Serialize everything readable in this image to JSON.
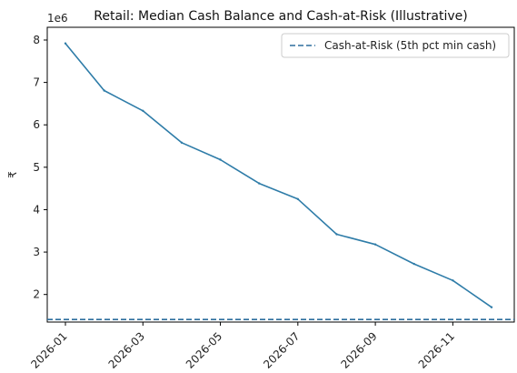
{
  "chart_data": {
    "type": "line",
    "title": "Retail: Median Cash Balance and Cash-at-Risk (Illustrative)",
    "xlabel": "",
    "ylabel": "₹",
    "y_offset_label": "1e6",
    "x": [
      "2026-01",
      "2026-02",
      "2026-03",
      "2026-04",
      "2026-05",
      "2026-06",
      "2026-07",
      "2026-08",
      "2026-09",
      "2026-10",
      "2026-11",
      "2026-12"
    ],
    "x_tick_labels": [
      "2026-01",
      "2026-03",
      "2026-05",
      "2026-07",
      "2026-09",
      "2026-11"
    ],
    "y_ticks": [
      2,
      3,
      4,
      5,
      6,
      7,
      8
    ],
    "ylim": [
      1.35,
      8.3
    ],
    "grid": false,
    "legend_position": "top-right",
    "series": [
      {
        "values": [
          7.92,
          6.81,
          6.33,
          5.58,
          5.18,
          4.62,
          4.25,
          3.42,
          3.18,
          2.72,
          2.33,
          1.7
        ],
        "color": "#2e7ca8",
        "style": "solid"
      },
      {
        "name": "Cash-at-Risk (5th pct min cash)",
        "constant": 1.41,
        "color": "#2e6f9e",
        "style": "dashed"
      }
    ]
  }
}
